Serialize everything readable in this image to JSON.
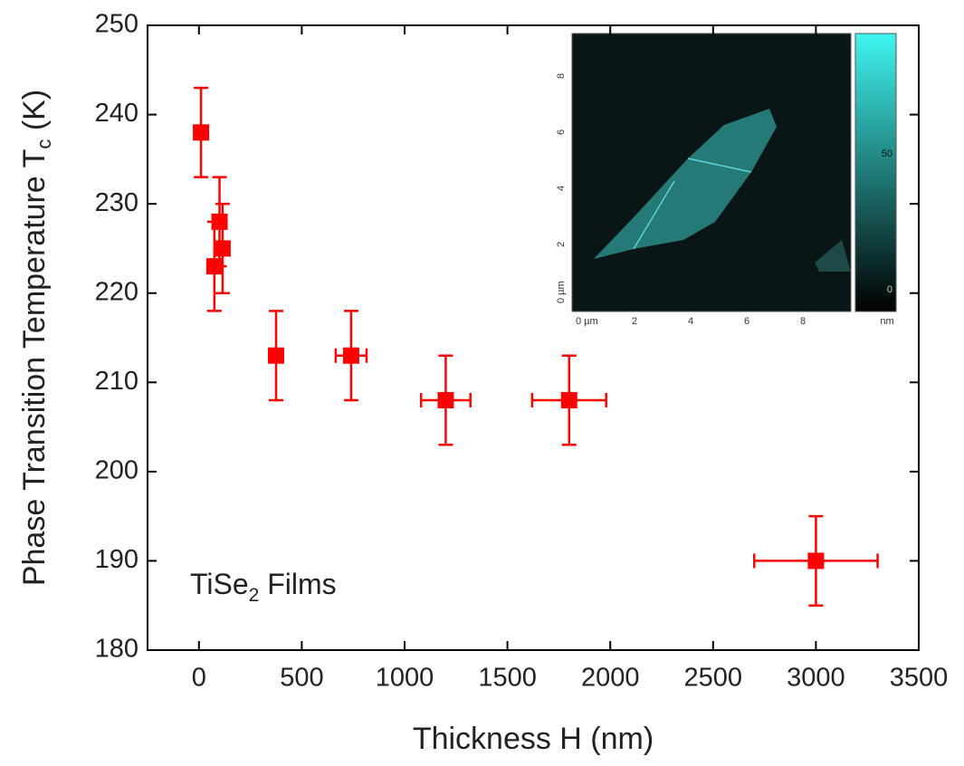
{
  "chart_data": {
    "type": "scatter",
    "x_label": "Thickness H (nm)",
    "y_label": [
      "Phase Transition Temperature T",
      "c",
      " (K)"
    ],
    "annotation": [
      "TiSe",
      "2",
      " Films"
    ],
    "series": [
      {
        "color": "#ff0000",
        "x": [
          10,
          75,
          100,
          115,
          375,
          740,
          1200,
          1800,
          3000
        ],
        "x_err": [
          10,
          15,
          15,
          15,
          20,
          75,
          120,
          180,
          300
        ],
        "values": [
          238,
          223,
          228,
          225,
          213,
          213,
          208,
          208,
          190
        ],
        "y_err": [
          5,
          5,
          5,
          5,
          5,
          5,
          5,
          5,
          5
        ]
      }
    ],
    "xlim": [
      -250,
      3500
    ],
    "xticks": [
      0,
      500,
      1000,
      1500,
      2000,
      2500,
      3000,
      3500
    ],
    "ylim": [
      180,
      250
    ],
    "yticks": [
      180,
      190,
      200,
      210,
      220,
      230,
      240,
      250
    ],
    "inset": {
      "x_labels": [
        "0 µm",
        "2",
        "4",
        "6",
        "8"
      ],
      "y_labels": [
        "0 µm",
        "2",
        "4",
        "6",
        "8"
      ],
      "colorbar_labels": [
        "0",
        "50"
      ],
      "colorbar_unit": "nm"
    }
  }
}
